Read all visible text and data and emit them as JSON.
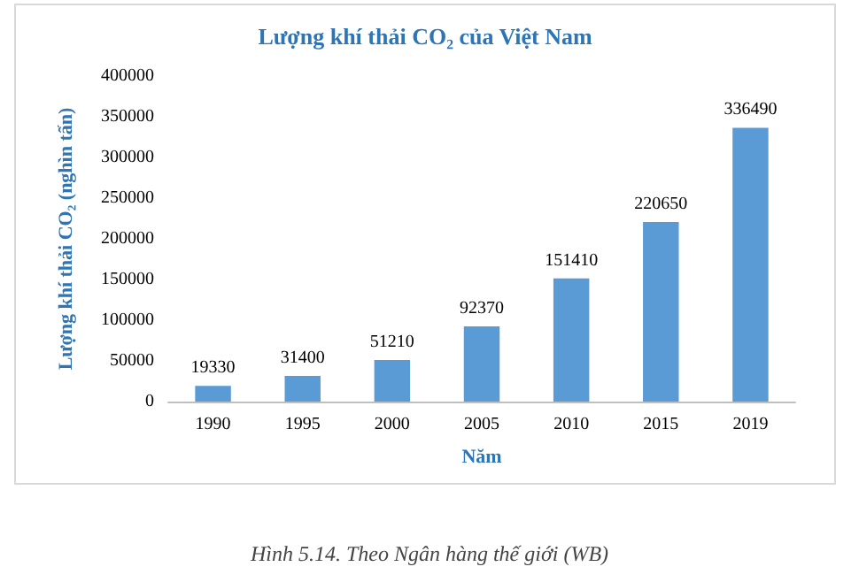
{
  "chart_data": {
    "type": "bar",
    "title": "Lượng khí thải CO₂ của Việt Nam",
    "xlabel": "Năm",
    "ylabel": "Lượng khí thải CO₂ (nghìn tấn)",
    "categories": [
      "1990",
      "1995",
      "2000",
      "2005",
      "2010",
      "2015",
      "2019"
    ],
    "values": [
      19330,
      31400,
      51210,
      92370,
      151410,
      220650,
      336490
    ],
    "color": "#5b9bd5",
    "ylim": [
      0,
      400000
    ],
    "yticks": [
      0,
      50000,
      100000,
      150000,
      200000,
      250000,
      300000,
      350000,
      400000
    ],
    "grid": false,
    "data_labels": true,
    "annotations": [
      "Hình 5.14. Theo Ngân hàng thế giới (WB)"
    ]
  }
}
